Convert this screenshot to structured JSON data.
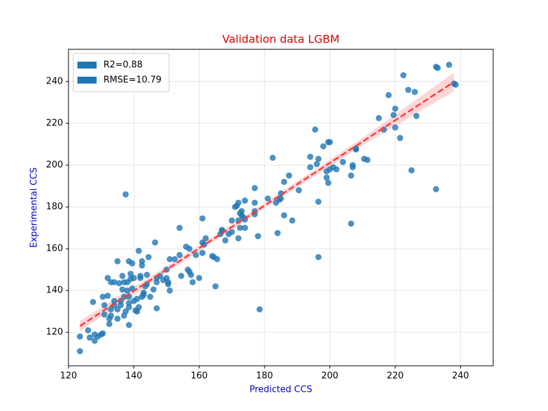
{
  "chart_data": {
    "type": "scatter",
    "title": "Validation data LGBM",
    "xlabel": "Predicted CCS",
    "ylabel": "Experimental CCS",
    "color": "#1f77b4",
    "x": [
      123.5,
      123.5,
      126,
      126.5,
      128,
      128,
      129,
      130,
      130.5,
      127.5,
      130.5,
      131,
      131,
      132,
      132,
      132.5,
      132.5,
      133,
      133,
      133,
      134,
      134,
      134,
      135,
      135,
      135,
      135.5,
      136,
      136,
      136.5,
      136.5,
      137,
      137,
      137,
      137.5,
      137.5,
      138,
      138,
      138.5,
      138.5,
      138.5,
      138.5,
      138.5,
      139,
      139,
      139.5,
      139.5,
      140,
      140,
      140.5,
      141,
      141,
      141.5,
      141.5,
      142,
      142,
      142.5,
      142.5,
      142.5,
      143,
      143,
      143.5,
      144,
      144,
      144.5,
      145,
      146,
      146.5,
      147,
      147,
      147,
      148,
      149,
      150,
      150,
      150.5,
      150.5,
      151,
      151,
      152.5,
      154,
      154,
      154.5,
      156,
      156.5,
      157,
      157,
      157.5,
      158,
      159,
      160,
      161,
      161,
      161,
      161.5,
      162,
      164,
      164.5,
      165,
      165.5,
      166.5,
      167,
      167,
      168,
      169,
      170,
      170,
      171,
      171.5,
      172,
      172,
      172,
      172.5,
      172.5,
      173,
      173,
      173.5,
      174,
      174,
      174,
      177,
      177,
      177,
      177,
      178,
      178.5,
      181,
      182.5,
      183.5,
      184,
      184.5,
      185,
      185,
      186,
      186,
      187.5,
      188.5,
      190.5,
      194,
      194,
      195.5,
      196,
      196.5,
      196.5,
      196.5,
      198,
      199,
      199,
      199.5,
      199.5,
      200,
      200,
      201,
      202,
      204,
      206.5,
      206.5,
      207,
      207,
      208,
      208,
      210.5,
      211.5,
      215,
      216.5,
      218,
      219.5,
      220,
      220,
      221.5,
      222.5,
      224,
      225,
      226,
      226.5,
      232.5,
      232.5,
      233,
      236.5,
      238,
      238.5
    ],
    "values": [
      111,
      118,
      121,
      117.5,
      116,
      119,
      118,
      119,
      119.5,
      134.5,
      137,
      133,
      128.5,
      137.5,
      146,
      124,
      126.5,
      128,
      131,
      144,
      133,
      135,
      144,
      126.5,
      131,
      154,
      143.5,
      133,
      135,
      140.5,
      147,
      137,
      128,
      144,
      186,
      130,
      140,
      144,
      134,
      137,
      132,
      123.5,
      154,
      145.5,
      148,
      153,
      141,
      135,
      146,
      130.5,
      136,
      130,
      132,
      159,
      146,
      147,
      154,
      152,
      137,
      139,
      138,
      142,
      143,
      147.5,
      156,
      137,
      140.5,
      163,
      131.5,
      144,
      146,
      147,
      145,
      150,
      146,
      144,
      143,
      140,
      155,
      155,
      157,
      170,
      147,
      161,
      150,
      160,
      149,
      147.5,
      144,
      157,
      146,
      163,
      174.5,
      158,
      162,
      165,
      156.5,
      156,
      142,
      155,
      167,
      168.5,
      169,
      164,
      167,
      168,
      173.5,
      180,
      180.5,
      165,
      173.5,
      182,
      170,
      177,
      178,
      176,
      175,
      174,
      183,
      170,
      189,
      182,
      178,
      176.5,
      166,
      131,
      184,
      203.5,
      182,
      167.5,
      183.5,
      184,
      186.5,
      176,
      192,
      195,
      173.5,
      188,
      204,
      199,
      217,
      200.5,
      182.5,
      156,
      203,
      209,
      194,
      197,
      191.5,
      211,
      211,
      198,
      199,
      198,
      201.5,
      195,
      172,
      199,
      200,
      207.5,
      208,
      203,
      202.5,
      222.5,
      217,
      233.5,
      224,
      227,
      218,
      213,
      243,
      236,
      197.5,
      235,
      223.5,
      188.5,
      247,
      246.5,
      248,
      239,
      238.5
    ],
    "fit": {
      "x": [
        123.5,
        238
      ],
      "y": [
        123.0,
        239.8
      ],
      "color": "#ff3b3b"
    },
    "band": {
      "x": [
        123.5,
        150,
        180,
        210,
        238
      ],
      "lower": [
        120.5,
        148.5,
        179.4,
        209.4,
        235.3
      ],
      "upper": [
        125.5,
        151.5,
        181.8,
        213.0,
        244.3
      ],
      "color": "#ffc8c8"
    },
    "legend": {
      "position": "upper left",
      "entries": [
        "R2=0.88",
        "RMSE=10.79"
      ],
      "color": "#1f77b4"
    },
    "xlim": [
      120,
      250
    ],
    "ylim": [
      104,
      255.4
    ],
    "xticks": [
      120,
      140,
      160,
      180,
      200,
      220,
      240
    ],
    "yticks": [
      120,
      140,
      160,
      180,
      200,
      220,
      240
    ],
    "grid": true
  }
}
